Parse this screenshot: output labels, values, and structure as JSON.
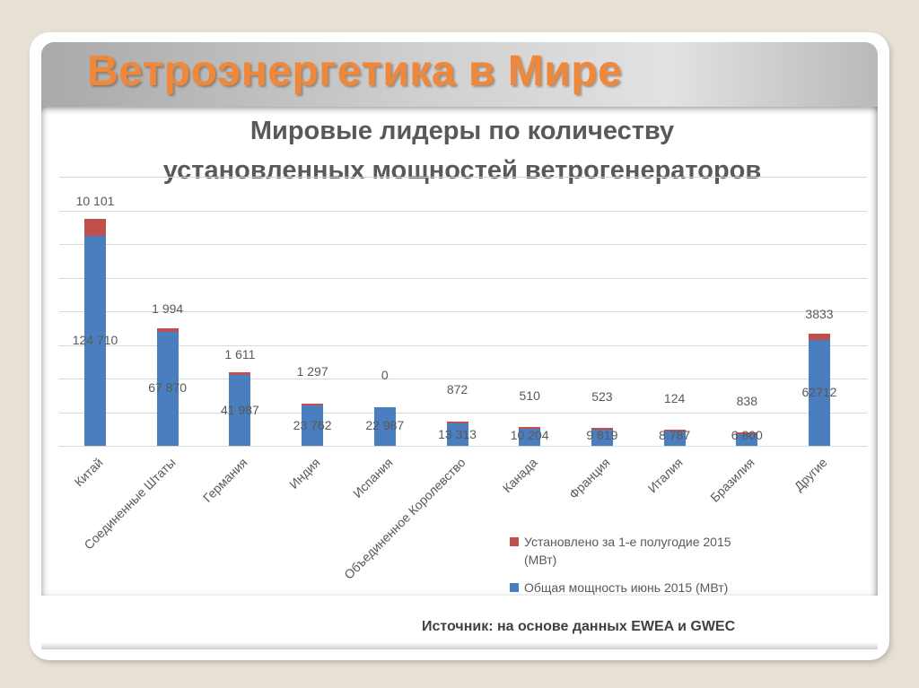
{
  "slide": {
    "title": "Ветроэнергетика в Мире",
    "source": "Источник: на основе данных EWEA и GWEC"
  },
  "colors": {
    "title_orange": "#f0883b",
    "series_installed": "#c0504d",
    "series_total": "#4a7ebf",
    "background": "#e6e0d6"
  },
  "chart_data": {
    "type": "bar",
    "stacked": true,
    "title": "Мировые лидеры по количеству установленных мощностей ветрогенераторов",
    "title_lines": [
      "Мировые лидеры по количеству",
      "установленных мощностей ветрогенераторов"
    ],
    "xlabel": "",
    "ylabel": "",
    "ylim": [
      0,
      160000
    ],
    "grid": true,
    "y_axis_labels_visible": false,
    "legend_position": "bottom-right",
    "categories": [
      "Китай",
      "Соединенные Штаты",
      "Германия",
      "Индия",
      "Испания",
      "Объединенное Королевство",
      "Канада",
      "Франция",
      "Италия",
      "Бразилия",
      "Другие"
    ],
    "series": [
      {
        "name": "Общая мощность июнь 2015 (МВт)",
        "color": "#4a7ebf",
        "values": [
          124710,
          67870,
          41987,
          23762,
          22987,
          13313,
          10204,
          9819,
          8787,
          6800,
          62712
        ],
        "labels": [
          "124 710",
          "67 870",
          "41 987",
          "23 762",
          "22 987",
          "13 313",
          "10 204",
          "9 819",
          "8 787",
          "6 800",
          "62712"
        ]
      },
      {
        "name": "Установлено за 1-е полугодие 2015 (МВт)",
        "color": "#c0504d",
        "values": [
          10101,
          1994,
          1611,
          1297,
          0,
          872,
          510,
          523,
          124,
          838,
          3833
        ],
        "labels": [
          "10 101",
          "1 994",
          "1 611",
          "1 297",
          "0",
          "872",
          "510",
          "523",
          "124",
          "838",
          "3833"
        ]
      }
    ],
    "legend": [
      {
        "label_line1": "Установлено за 1-е полугодие 2015",
        "label_line2": "(МВт)",
        "color": "#c0504d"
      },
      {
        "label_line1": "Общая мощность июнь 2015 (МВт)",
        "label_line2": "",
        "color": "#4a7ebf"
      }
    ]
  }
}
